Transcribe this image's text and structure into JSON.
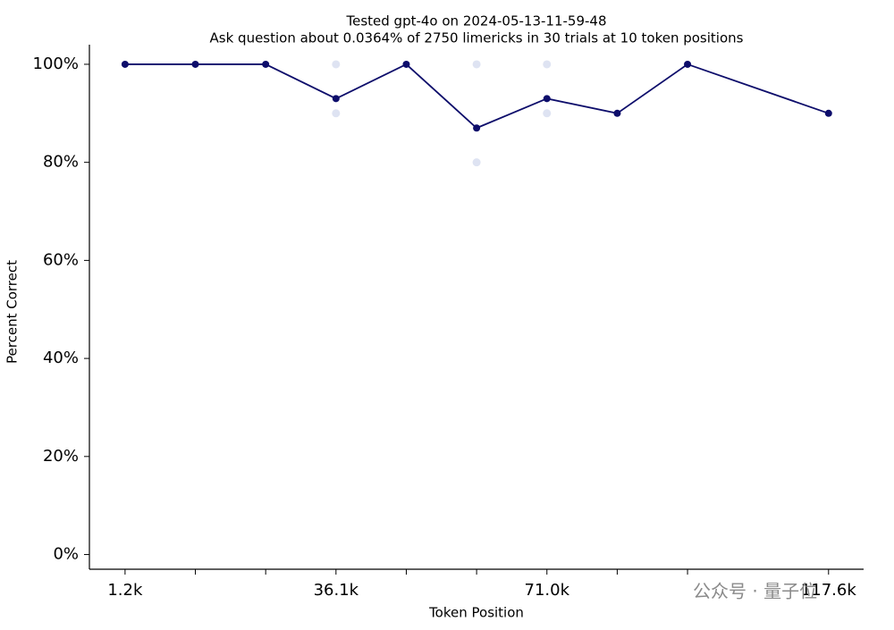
{
  "chart_data": {
    "type": "line",
    "title": "Tested gpt-4o on 2024-05-13-11-59-48",
    "subtitle": "Ask question about 0.0364% of 2750 limericks in 30 trials at 10 token positions",
    "x_label": "Token Position",
    "y_label": "Percent Correct",
    "x": [
      1200,
      12833,
      24467,
      36100,
      47733,
      59367,
      71000,
      82633,
      94267,
      117600
    ],
    "series": [
      {
        "color": "#0d0d6b",
        "values": [
          100,
          100,
          100,
          93,
          100,
          87,
          93,
          90,
          100,
          90
        ]
      }
    ],
    "trial_points": {
      "color": "#c8d0ea",
      "x": [
        36100,
        36100,
        59367,
        59367,
        71000,
        71000
      ],
      "y": [
        100,
        90,
        100,
        80,
        100,
        90
      ]
    },
    "xlim": [
      -4700,
      123400
    ],
    "xticks": [
      {
        "value": 1200,
        "label": "1.2k"
      },
      {
        "value": 36100,
        "label": "36.1k"
      },
      {
        "value": 71000,
        "label": "71.0k"
      },
      {
        "value": 117600,
        "label": "117.6k"
      }
    ],
    "ylim": [
      -3,
      104
    ],
    "yticks": [
      {
        "value": 0,
        "label": "0%"
      },
      {
        "value": 20,
        "label": "20%"
      },
      {
        "value": 40,
        "label": "40%"
      },
      {
        "value": 60,
        "label": "60%"
      },
      {
        "value": 80,
        "label": "80%"
      },
      {
        "value": 100,
        "label": "100%"
      }
    ],
    "grid": false,
    "watermark": "公众号 · 量子位"
  }
}
